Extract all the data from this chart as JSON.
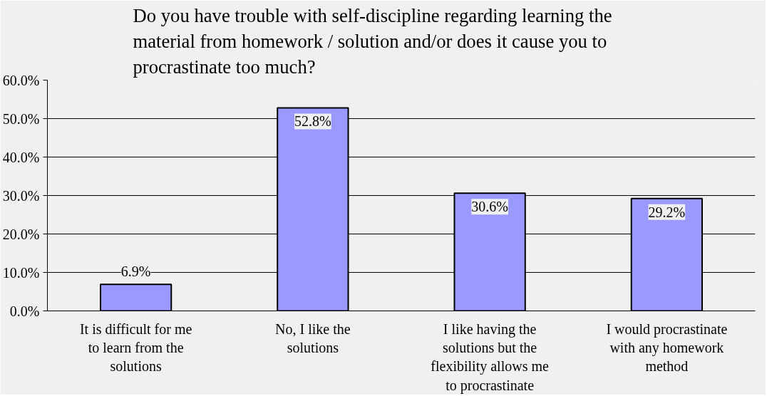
{
  "chart_data": {
    "type": "bar",
    "title": "Do you have trouble with self-discipline regarding learning the material from homework / solution and/or does it cause you to procrastinate too much?",
    "categories": [
      "It is difficult for me to learn from the solutions",
      "No, I like the solutions",
      "I like having the solutions but the flexibility allows me to procrastinate",
      "I would procrastinate with any homework method"
    ],
    "values": [
      6.9,
      52.8,
      30.6,
      29.2
    ],
    "value_labels": [
      "6.9%",
      "52.8%",
      "30.6%",
      "29.2%"
    ],
    "color": "#9999ff",
    "ylim": [
      0,
      60
    ],
    "yticks": [
      {
        "value": 0,
        "label": "0.0%"
      },
      {
        "value": 10,
        "label": "10.0%"
      },
      {
        "value": 20,
        "label": "20.0%"
      },
      {
        "value": 30,
        "label": "30.0%"
      },
      {
        "value": 40,
        "label": "40.0%"
      },
      {
        "value": 50,
        "label": "50.0%"
      },
      {
        "value": 60,
        "label": "60.0%"
      }
    ],
    "grid": "y"
  }
}
